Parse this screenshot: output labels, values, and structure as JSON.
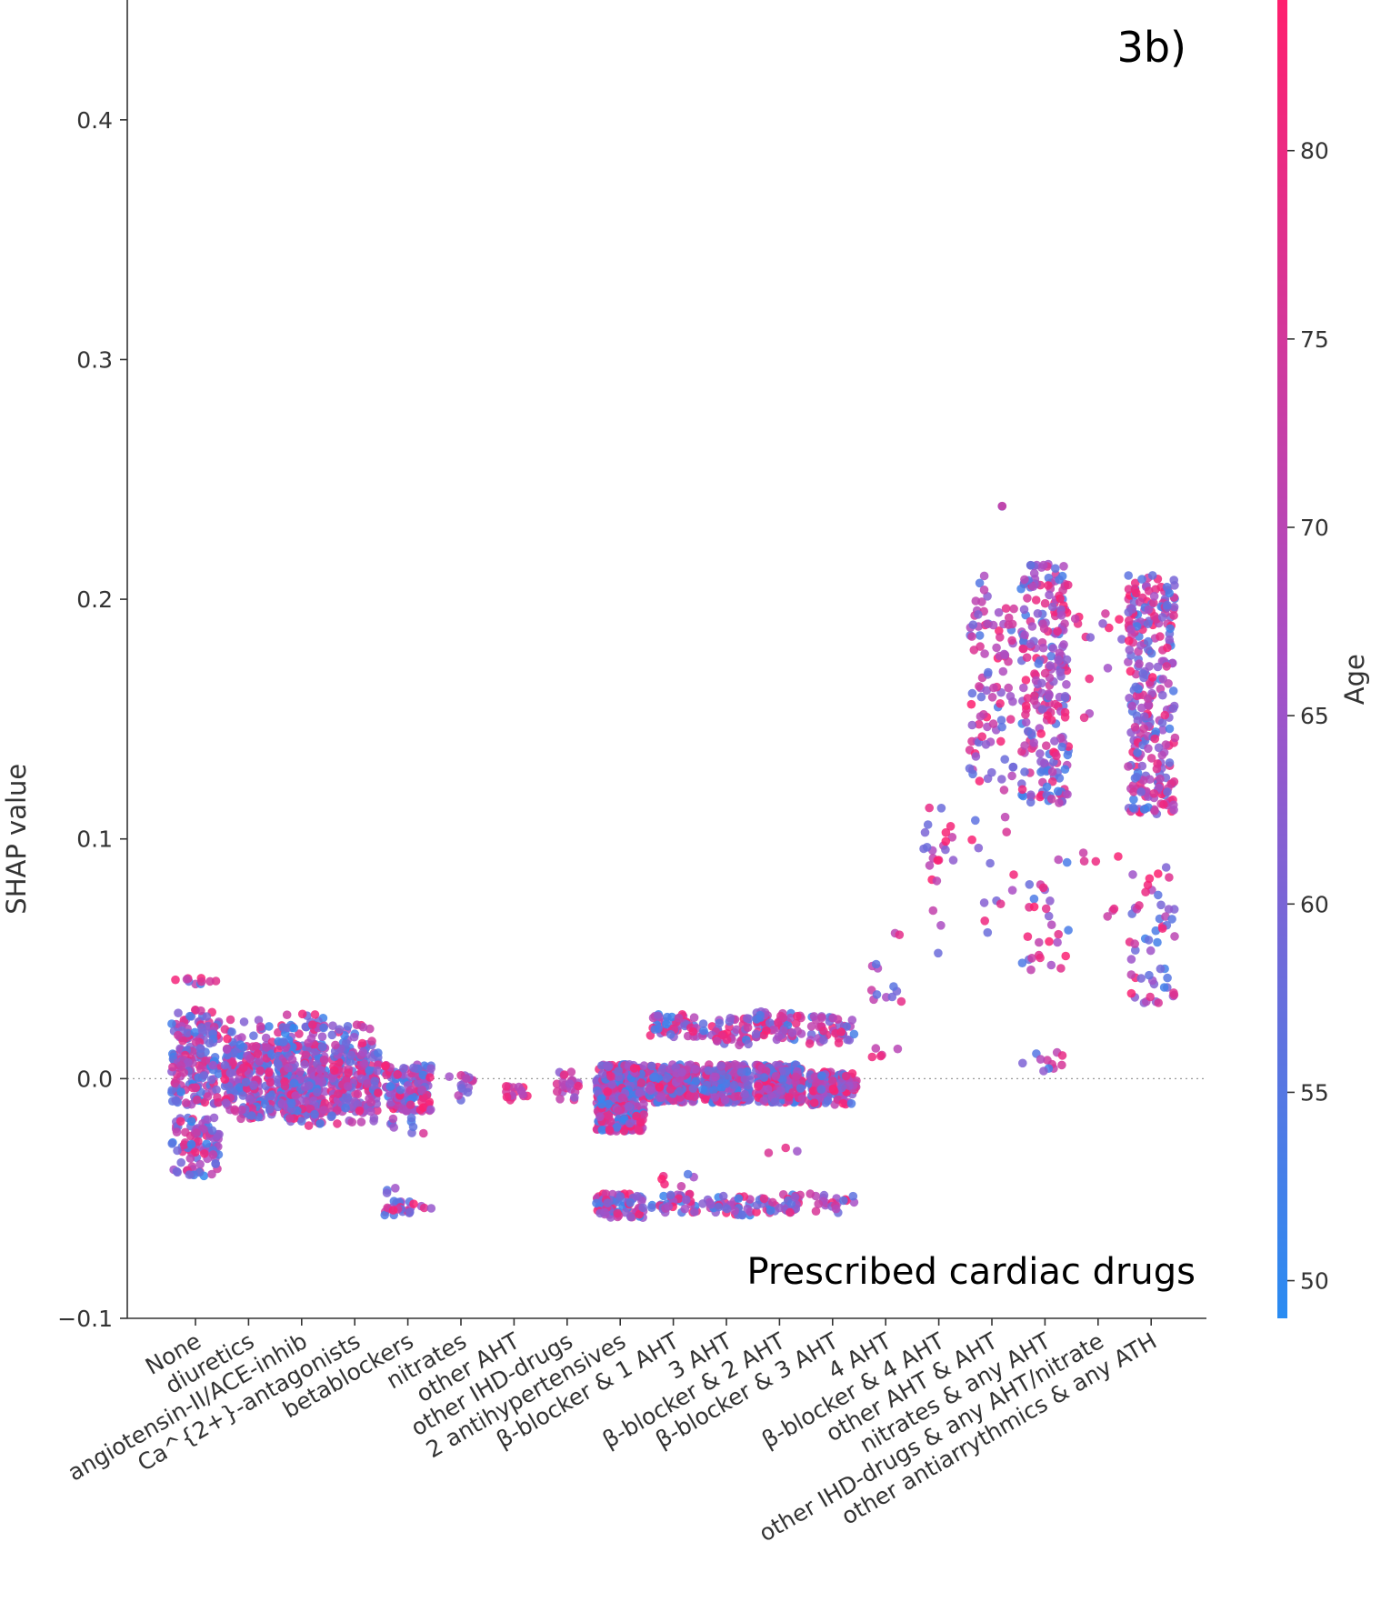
{
  "chart_data": {
    "type": "scatter",
    "panel_label": "3b)",
    "annotation": "Prescribed cardiac drugs",
    "xlabel": "",
    "ylabel": "SHAP value",
    "ylim": [
      -0.1,
      0.45
    ],
    "yticks": [
      -0.1,
      0.0,
      0.1,
      0.2,
      0.3,
      0.4
    ],
    "ytick_labels": [
      "−0.1",
      "0.0",
      "0.1",
      "0.2",
      "0.3",
      "0.4"
    ],
    "zero_line": true,
    "grid": false,
    "categories": [
      "None",
      "diuretics",
      "angiotensin-II/ACE-inhib",
      "Ca^{2+}-antagonists",
      "betablockers",
      "nitrates",
      "other AHT",
      "other IHD-drugs",
      "2 antihypertensives",
      "β-blocker & 1 AHT",
      "3 AHT",
      "β-blocker & 2 AHT",
      "β-blocker & 3 AHT",
      "4 AHT",
      "β-blocker & 4 AHT",
      "other AHT & AHT",
      "nitrates & any AHT",
      "other IHD-drugs & any AHT/nitrate",
      "other antiarrythmics & any ATH"
    ],
    "colorbar": {
      "label": "Age",
      "range": [
        49,
        84
      ],
      "ticks": [
        50,
        55,
        60,
        65,
        70,
        75,
        80
      ],
      "color_low": "#2a8cf2",
      "color_mid": "#a84fc6",
      "color_high": "#ff1f6e"
    },
    "groups": [
      {
        "category": "None",
        "n": 320,
        "width": 0.45,
        "clusters": [
          {
            "y": 0.025,
            "h": 0.004,
            "p": 0.06
          },
          {
            "y": 0.02,
            "h": 0.004,
            "p": 0.06
          },
          {
            "y": 0.015,
            "h": 0.005,
            "p": 0.09
          },
          {
            "y": 0.01,
            "h": 0.004,
            "p": 0.07
          },
          {
            "y": -0.001,
            "h": 0.01,
            "p": 0.24
          },
          {
            "y": -0.02,
            "h": 0.004,
            "p": 0.07
          },
          {
            "y": -0.025,
            "h": 0.004,
            "p": 0.08
          },
          {
            "y": -0.03,
            "h": 0.004,
            "p": 0.09
          },
          {
            "y": -0.038,
            "h": 0.003,
            "p": 0.06
          },
          {
            "y": 0.04,
            "h": 0.002,
            "p": 0.03
          },
          {
            "y": 0.005,
            "h": 0.004,
            "p": 0.05
          }
        ],
        "age": [
          50,
          82
        ]
      },
      {
        "category": "diuretics",
        "n": 230,
        "width": 0.45,
        "clusters": [
          {
            "y": 0.002,
            "h": 0.012,
            "p": 0.75
          },
          {
            "y": -0.013,
            "h": 0.004,
            "p": 0.15
          },
          {
            "y": 0.015,
            "h": 0.005,
            "p": 0.06
          },
          {
            "y": 0.022,
            "h": 0.003,
            "p": 0.04
          }
        ],
        "age": [
          52,
          83
        ]
      },
      {
        "category": "angiotensin-II/ACE-inhib",
        "n": 320,
        "width": 0.45,
        "clusters": [
          {
            "y": 0.0,
            "h": 0.015,
            "p": 0.75
          },
          {
            "y": -0.015,
            "h": 0.005,
            "p": 0.12
          },
          {
            "y": 0.018,
            "h": 0.005,
            "p": 0.08
          },
          {
            "y": 0.024,
            "h": 0.003,
            "p": 0.05
          }
        ],
        "age": [
          50,
          83
        ]
      },
      {
        "category": "Ca^{2+}-antagonists",
        "n": 220,
        "width": 0.45,
        "clusters": [
          {
            "y": -0.002,
            "h": 0.012,
            "p": 0.75
          },
          {
            "y": 0.013,
            "h": 0.004,
            "p": 0.14
          },
          {
            "y": 0.02,
            "h": 0.003,
            "p": 0.06
          },
          {
            "y": -0.016,
            "h": 0.003,
            "p": 0.05
          }
        ],
        "age": [
          52,
          83
        ]
      },
      {
        "category": "betablockers",
        "n": 170,
        "width": 0.45,
        "clusters": [
          {
            "y": -0.004,
            "h": 0.01,
            "p": 0.78
          },
          {
            "y": -0.054,
            "h": 0.003,
            "p": 0.15
          },
          {
            "y": -0.02,
            "h": 0.004,
            "p": 0.05
          },
          {
            "y": -0.046,
            "h": 0.002,
            "p": 0.02
          }
        ],
        "age": [
          51,
          84
        ]
      },
      {
        "category": "nitrates",
        "n": 16,
        "width": 0.25,
        "clusters": [
          {
            "y": -0.003,
            "h": 0.006,
            "p": 1.0
          }
        ],
        "age": [
          58,
          78
        ]
      },
      {
        "category": "other AHT",
        "n": 16,
        "width": 0.25,
        "clusters": [
          {
            "y": -0.006,
            "h": 0.003,
            "p": 1.0
          }
        ],
        "age": [
          65,
          84
        ]
      },
      {
        "category": "other IHD-drugs",
        "n": 22,
        "width": 0.25,
        "clusters": [
          {
            "y": -0.005,
            "h": 0.004,
            "p": 0.7
          },
          {
            "y": 0.0,
            "h": 0.003,
            "p": 0.3
          }
        ],
        "age": [
          62,
          84
        ]
      },
      {
        "category": "2 antihypertensives",
        "n": 430,
        "width": 0.45,
        "clusters": [
          {
            "y": -0.008,
            "h": 0.014,
            "p": 0.82
          },
          {
            "y": -0.053,
            "h": 0.005,
            "p": 0.18
          }
        ],
        "age": [
          50,
          84
        ]
      },
      {
        "category": "β-blocker & 1 AHT",
        "n": 300,
        "width": 0.45,
        "clusters": [
          {
            "y": -0.002,
            "h": 0.008,
            "p": 0.7
          },
          {
            "y": 0.022,
            "h": 0.005,
            "p": 0.16
          },
          {
            "y": -0.052,
            "h": 0.004,
            "p": 0.12
          },
          {
            "y": -0.042,
            "h": 0.003,
            "p": 0.02
          }
        ],
        "age": [
          51,
          84
        ]
      },
      {
        "category": "3 AHT",
        "n": 300,
        "width": 0.45,
        "clusters": [
          {
            "y": -0.002,
            "h": 0.008,
            "p": 0.72
          },
          {
            "y": 0.02,
            "h": 0.006,
            "p": 0.16
          },
          {
            "y": -0.053,
            "h": 0.004,
            "p": 0.12
          }
        ],
        "age": [
          51,
          84
        ]
      },
      {
        "category": "β-blocker & 2 AHT",
        "n": 330,
        "width": 0.45,
        "clusters": [
          {
            "y": -0.002,
            "h": 0.008,
            "p": 0.68
          },
          {
            "y": 0.022,
            "h": 0.006,
            "p": 0.2
          },
          {
            "y": -0.052,
            "h": 0.004,
            "p": 0.11
          },
          {
            "y": -0.03,
            "h": 0.002,
            "p": 0.01
          }
        ],
        "age": [
          51,
          84
        ]
      },
      {
        "category": "β-blocker & 3 AHT",
        "n": 210,
        "width": 0.45,
        "clusters": [
          {
            "y": -0.004,
            "h": 0.007,
            "p": 0.7
          },
          {
            "y": 0.02,
            "h": 0.006,
            "p": 0.2
          },
          {
            "y": -0.052,
            "h": 0.004,
            "p": 0.1
          }
        ],
        "age": [
          52,
          84
        ]
      },
      {
        "category": "4 AHT",
        "n": 18,
        "width": 0.3,
        "clusters": [
          {
            "y": 0.04,
            "h": 0.008,
            "p": 0.6
          },
          {
            "y": 0.011,
            "h": 0.002,
            "p": 0.3
          },
          {
            "y": 0.06,
            "h": 0.001,
            "p": 0.1
          }
        ],
        "age": [
          55,
          84
        ]
      },
      {
        "category": "β-blocker & 4 AHT",
        "n": 22,
        "width": 0.3,
        "clusters": [
          {
            "y": 0.096,
            "h": 0.006,
            "p": 0.5
          },
          {
            "y": 0.11,
            "h": 0.008,
            "p": 0.25
          },
          {
            "y": 0.07,
            "h": 0.02,
            "p": 0.25
          }
        ],
        "age": [
          58,
          84
        ]
      },
      {
        "category": "other AHT & AHT",
        "n": 110,
        "width": 0.42,
        "clusters": [
          {
            "y": 0.155,
            "h": 0.035,
            "p": 0.72
          },
          {
            "y": 0.2,
            "h": 0.012,
            "p": 0.14
          },
          {
            "y": 0.085,
            "h": 0.025,
            "p": 0.12
          },
          {
            "y": 0.24,
            "h": 0.002,
            "p": 0.02
          }
        ],
        "age": [
          54,
          84
        ]
      },
      {
        "category": "nitrates & any AHT",
        "n": 280,
        "width": 0.45,
        "clusters": [
          {
            "y": 0.165,
            "h": 0.05,
            "p": 0.86
          },
          {
            "y": 0.07,
            "h": 0.025,
            "p": 0.1
          },
          {
            "y": 0.007,
            "h": 0.004,
            "p": 0.04
          }
        ],
        "age": [
          52,
          84
        ]
      },
      {
        "category": "other IHD-drugs & any AHT/nitrate",
        "n": 22,
        "width": 0.45,
        "clusters": [
          {
            "y": 0.19,
            "h": 0.007,
            "p": 0.45
          },
          {
            "y": 0.16,
            "h": 0.015,
            "p": 0.2
          },
          {
            "y": 0.093,
            "h": 0.003,
            "p": 0.2
          },
          {
            "y": 0.07,
            "h": 0.003,
            "p": 0.15
          }
        ],
        "age": [
          60,
          84
        ]
      },
      {
        "category": "other antiarrythmics & any ATH",
        "n": 330,
        "width": 0.45,
        "clusters": [
          {
            "y": 0.16,
            "h": 0.05,
            "p": 0.84
          },
          {
            "y": 0.06,
            "h": 0.03,
            "p": 0.16
          }
        ],
        "age": [
          52,
          84
        ]
      }
    ]
  }
}
